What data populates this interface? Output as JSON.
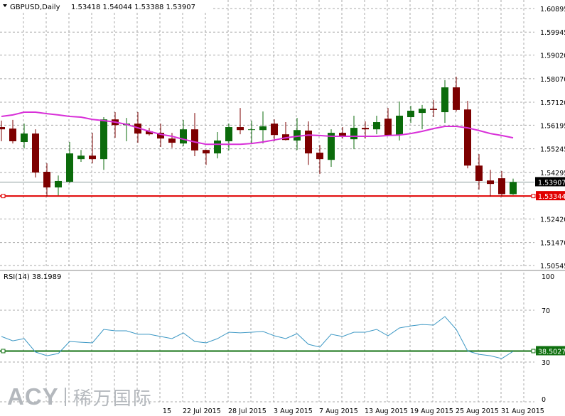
{
  "header": {
    "arrow_icon": "triangle-down",
    "symbol": "GBPUSD,Daily",
    "ohlc": "1.53418 1.54044 1.53388 1.53907"
  },
  "rsi_header": "RSI(14) 38.1989",
  "price_axis": [
    "1.60895",
    "1.59945",
    "1.59020",
    "1.58070",
    "1.57120",
    "1.56195",
    "1.55245",
    "1.54295",
    "1.52420",
    "1.51470",
    "1.50545"
  ],
  "bid_label": "1.53907",
  "hline_label": "1.53344",
  "rsi_axis": [
    "100",
    "70",
    "30",
    "0"
  ],
  "rsi_level_label": "38.5027",
  "date_labels": [
    {
      "text": "15",
      "index": 12
    },
    {
      "text": "22 Jul 2015",
      "index": 16
    },
    {
      "text": "28 Jul 2015",
      "index": 20
    },
    {
      "text": "3 Aug 2015",
      "index": 24
    },
    {
      "text": "7 Aug 2015",
      "index": 28
    },
    {
      "text": "13 Aug 2015",
      "index": 32
    },
    {
      "text": "19 Aug 2015",
      "index": 36
    },
    {
      "text": "25 Aug 2015",
      "index": 40
    },
    {
      "text": "31 Aug 2015",
      "index": 44
    }
  ],
  "logo": {
    "en": "ACY",
    "cn": "稀万国际"
  },
  "colors": {
    "bull": "#0b6b0b",
    "bear": "#7d0000",
    "ma": "#d830d8",
    "rsi": "#3b97c4",
    "hline": "#e00000",
    "rsi_level": "#107010",
    "bid": "#8a9a9a",
    "grid": "#a8a8a8"
  },
  "chart_data": [
    {
      "type": "candlestick",
      "symbol": "GBPUSD",
      "timeframe": "Daily",
      "ylim": [
        1.50545,
        1.60895
      ],
      "grid": true,
      "hline": 1.53344,
      "bid": 1.53907,
      "ohlc": [
        [
          1.5612,
          1.5638,
          1.5555,
          1.5603
        ],
        [
          1.5606,
          1.5641,
          1.5546,
          1.5555
        ],
        [
          1.5552,
          1.5626,
          1.5526,
          1.5586
        ],
        [
          1.5586,
          1.5603,
          1.5409,
          1.5429
        ],
        [
          1.5432,
          1.5466,
          1.5332,
          1.5369
        ],
        [
          1.5369,
          1.5417,
          1.5337,
          1.5395
        ],
        [
          1.5392,
          1.5552,
          1.5386,
          1.5506
        ],
        [
          1.5483,
          1.552,
          1.5472,
          1.5497
        ],
        [
          1.5497,
          1.5589,
          1.5466,
          1.5483
        ],
        [
          1.5483,
          1.5652,
          1.544,
          1.5643
        ],
        [
          1.5643,
          1.5672,
          1.5569,
          1.562
        ],
        [
          1.562,
          1.5649,
          1.5555,
          1.5626
        ],
        [
          1.5626,
          1.5672,
          1.5549,
          1.5586
        ],
        [
          1.5595,
          1.5609,
          1.5578,
          1.5583
        ],
        [
          1.5589,
          1.5626,
          1.5532,
          1.5566
        ],
        [
          1.5566,
          1.5589,
          1.5529,
          1.5549
        ],
        [
          1.5546,
          1.5641,
          1.5535,
          1.5603
        ],
        [
          1.5603,
          1.5669,
          1.5495,
          1.5518
        ],
        [
          1.552,
          1.5521,
          1.546,
          1.5506
        ],
        [
          1.5506,
          1.5592,
          1.5486,
          1.5558
        ],
        [
          1.5555,
          1.5626,
          1.5518,
          1.5612
        ],
        [
          1.5612,
          1.5689,
          1.5583,
          1.56
        ],
        [
          1.5603,
          1.5638,
          1.5543,
          1.5603
        ],
        [
          1.56,
          1.5675,
          1.5546,
          1.5615
        ],
        [
          1.5626,
          1.5643,
          1.5555,
          1.558
        ],
        [
          1.5583,
          1.5632,
          1.5558,
          1.556
        ],
        [
          1.5558,
          1.5649,
          1.552,
          1.56
        ],
        [
          1.5598,
          1.5635,
          1.546,
          1.5506
        ],
        [
          1.5509,
          1.554,
          1.5423,
          1.5483
        ],
        [
          1.548,
          1.5603,
          1.5452,
          1.5589
        ],
        [
          1.5589,
          1.5612,
          1.5566,
          1.5575
        ],
        [
          1.5563,
          1.5658,
          1.5523,
          1.5609
        ],
        [
          1.5609,
          1.5635,
          1.5566,
          1.5603
        ],
        [
          1.5603,
          1.5658,
          1.5583,
          1.5632
        ],
        [
          1.5646,
          1.5689,
          1.5575,
          1.558
        ],
        [
          1.558,
          1.5715,
          1.5558,
          1.5658
        ],
        [
          1.5652,
          1.5698,
          1.5629,
          1.5678
        ],
        [
          1.5669,
          1.5701,
          1.5603,
          1.5686
        ],
        [
          1.5686,
          1.5721,
          1.5652,
          1.5681
        ],
        [
          1.5672,
          1.5801,
          1.5629,
          1.5772
        ],
        [
          1.5772,
          1.5815,
          1.5675,
          1.5681
        ],
        [
          1.5683,
          1.5718,
          1.5446,
          1.5457
        ],
        [
          1.5457,
          1.5503,
          1.536,
          1.5395
        ],
        [
          1.5397,
          1.544,
          1.5332,
          1.5383
        ],
        [
          1.5406,
          1.5435,
          1.5332,
          1.5342
        ],
        [
          1.53418,
          1.54044,
          1.53388,
          1.53907
        ]
      ],
      "moving_average": [
        1.5655,
        1.5661,
        1.5672,
        1.5672,
        1.5666,
        1.5661,
        1.5655,
        1.5652,
        1.5643,
        1.5638,
        1.5632,
        1.5623,
        1.5609,
        1.5595,
        1.5583,
        1.5575,
        1.5563,
        1.5552,
        1.5543,
        1.5543,
        1.5543,
        1.5543,
        1.5546,
        1.5552,
        1.556,
        1.5569,
        1.5575,
        1.558,
        1.5578,
        1.5575,
        1.5575,
        1.5575,
        1.5575,
        1.5575,
        1.5578,
        1.558,
        1.5586,
        1.5595,
        1.5606,
        1.5615,
        1.5615,
        1.5609,
        1.5598,
        1.5586,
        1.5578,
        1.5569
      ]
    },
    {
      "type": "line",
      "title": "RSI(14) 38.1989",
      "ylim": [
        0,
        100
      ],
      "levels": [
        70,
        30
      ],
      "level_line": 38.5027,
      "values": [
        49.7,
        46.4,
        48.1,
        37.7,
        34.9,
        36.6,
        45.9,
        45.3,
        44.8,
        55.2,
        54.1,
        54.1,
        51.4,
        51.4,
        49.7,
        48.1,
        52.5,
        45.9,
        44.8,
        48.1,
        53.0,
        52.5,
        53.0,
        53.6,
        50.3,
        48.1,
        51.9,
        43.7,
        41.5,
        51.4,
        49.7,
        53.0,
        53.0,
        55.2,
        50.3,
        56.3,
        57.9,
        59.0,
        58.5,
        65.1,
        55.2,
        38.5,
        36.0,
        34.9,
        32.7,
        38.2
      ]
    }
  ]
}
